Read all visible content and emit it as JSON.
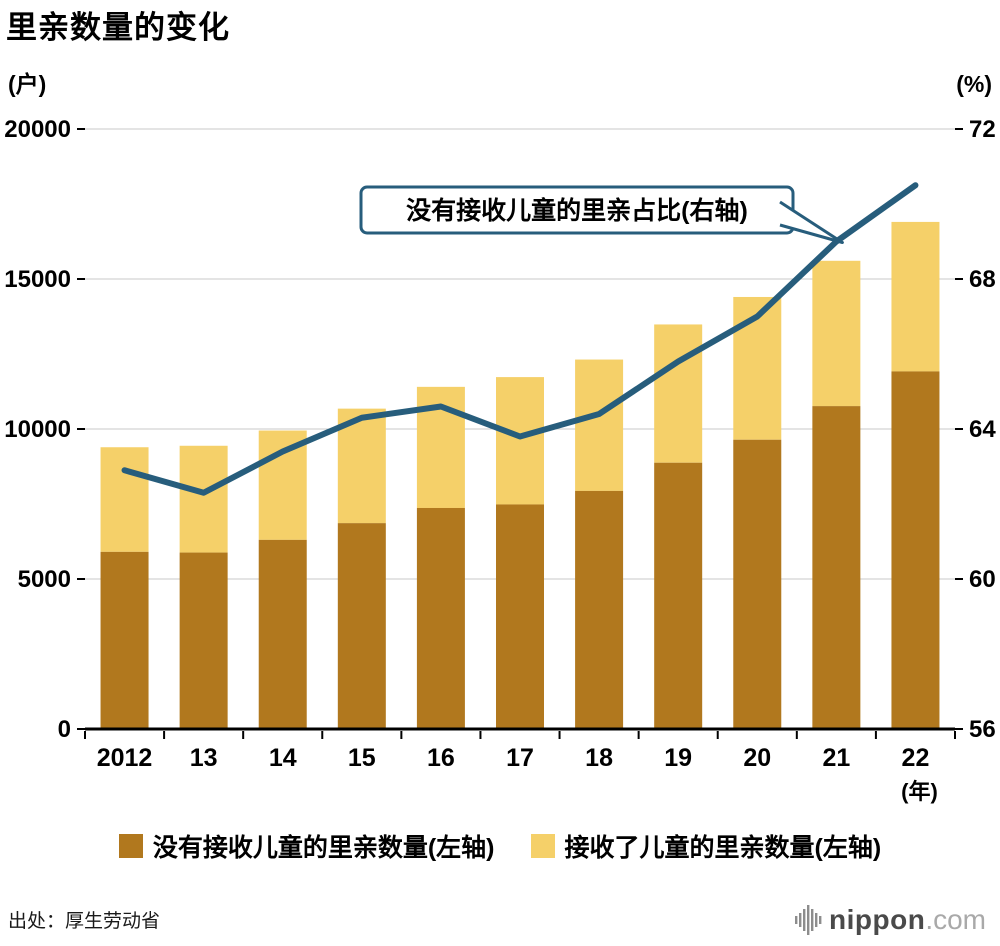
{
  "title": "里亲数量的变化",
  "chart_data": {
    "type": "bar",
    "stacked": true,
    "grid": true,
    "legend_position": "bottom",
    "categories": [
      "2012",
      "13",
      "14",
      "15",
      "16",
      "17",
      "18",
      "19",
      "20",
      "21",
      "22"
    ],
    "x_unit_label": "(年)",
    "left_axis": {
      "unit": "(户)",
      "min": 0,
      "max": 20000,
      "ticks": [
        0,
        5000,
        10000,
        15000,
        20000
      ]
    },
    "right_axis": {
      "unit": "(%)",
      "min": 56,
      "max": 72,
      "ticks": [
        56,
        60,
        64,
        68,
        72
      ]
    },
    "series": [
      {
        "name": "没有接收儿童的里亲数量(左轴)",
        "type": "bar",
        "axis": "left",
        "color": "#b1781e",
        "values": [
          5905,
          5881,
          6305,
          6862,
          7367,
          7485,
          7936,
          8876,
          9642,
          10763,
          11919
        ]
      },
      {
        "name": "接收了儿童的里亲数量(左轴)",
        "type": "bar",
        "axis": "left",
        "color": "#f5d069",
        "values": [
          3487,
          3560,
          3644,
          3817,
          4038,
          4245,
          4379,
          4609,
          4759,
          4844,
          4984
        ]
      },
      {
        "name": "没有接收儿童的里亲占比(右轴)",
        "type": "line",
        "axis": "right",
        "color": "#275d7c",
        "values": [
          62.9,
          62.3,
          63.4,
          64.3,
          64.6,
          63.8,
          64.4,
          65.8,
          67.0,
          69.0,
          70.5
        ]
      }
    ],
    "annotation": {
      "text": "没有接收儿童的里亲占比(右轴)",
      "points_to_category": "21"
    }
  },
  "legend": [
    {
      "label": "没有接收儿童的里亲数量(左轴)",
      "color": "#b1781e"
    },
    {
      "label": "接收了儿童的里亲数量(左轴)",
      "color": "#f5d069"
    }
  ],
  "footer": {
    "source": "出处：厚生劳动省",
    "logo": {
      "name": "nippon",
      "tld": ".com"
    }
  }
}
